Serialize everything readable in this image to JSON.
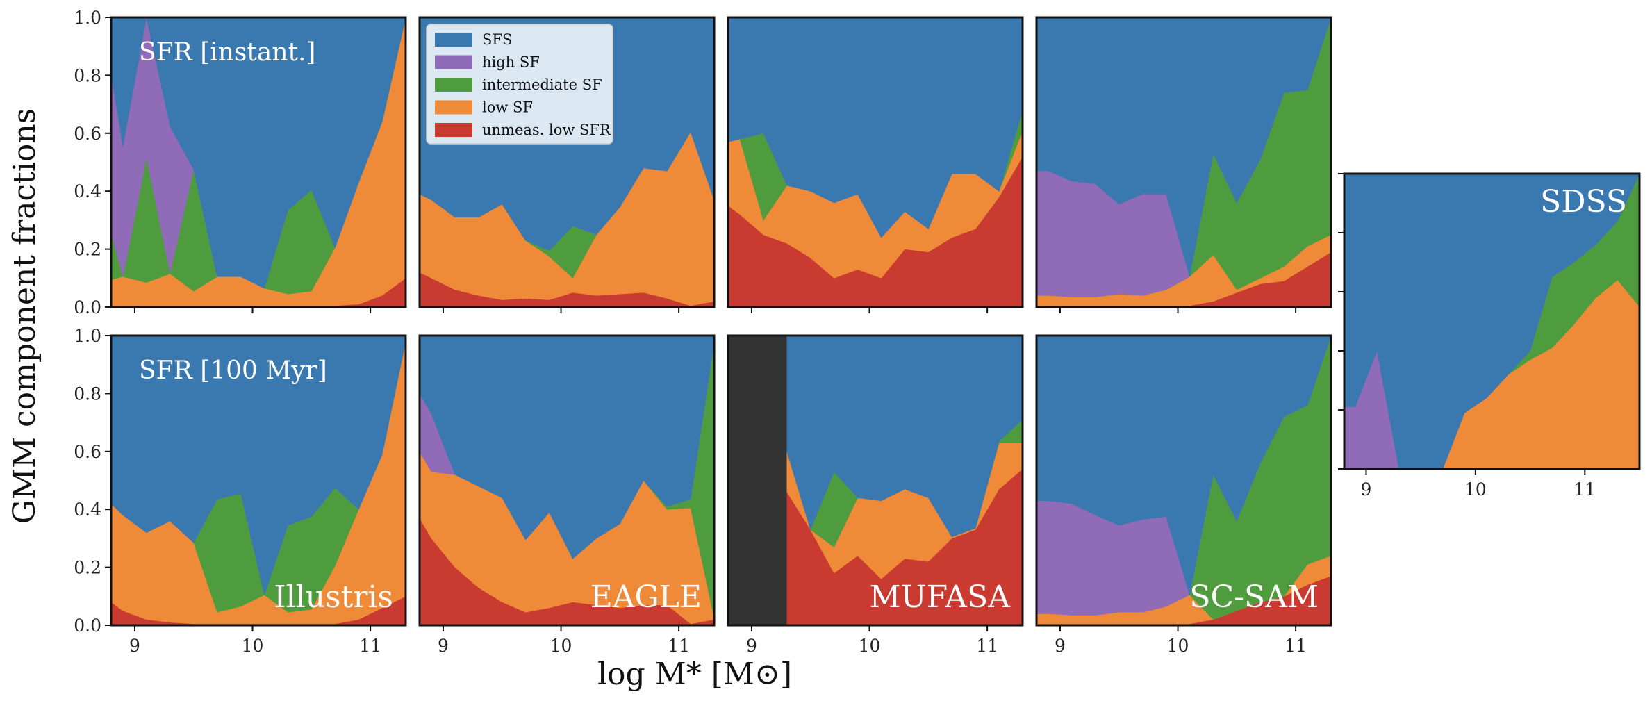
{
  "colors": {
    "SFS": "#3a78b0",
    "high SF": "#8f6bb8",
    "intermediate SF": "#4f9c3e",
    "low SF": "#ee8a38",
    "unmeas. low SFR": "#c93a30",
    "excluded": "#333333"
  },
  "ylabel": "GMM component fractions",
  "xlabel": "log M* [M⊙]",
  "legend": {
    "placement": "top-left of top EAGLE panel",
    "items": [
      "SFS",
      "high SF",
      "intermediate SF",
      "low SF",
      "unmeas. low SFR"
    ]
  },
  "row_labels": [
    "SFR [instant.]",
    "SFR [100 Myr]"
  ],
  "chart_data": [
    {
      "name": "illustris-instant",
      "type": "area",
      "row": 0,
      "col": 0,
      "title": "",
      "cut": null,
      "x": [
        8.8,
        8.9,
        9.1,
        9.3,
        9.5,
        9.7,
        9.9,
        10.1,
        10.3,
        10.5,
        10.7,
        10.9,
        11.1,
        11.3
      ],
      "series": [
        {
          "name": "unmeas. low SFR",
          "values": [
            0.005,
            0.005,
            0.005,
            0.005,
            0.005,
            0.005,
            0.005,
            0.005,
            0.005,
            0.005,
            0.005,
            0.01,
            0.04,
            0.1
          ]
        },
        {
          "name": "low SF",
          "values": [
            0.09,
            0.1,
            0.08,
            0.11,
            0.05,
            0.1,
            0.1,
            0.06,
            0.04,
            0.05,
            0.2,
            0.42,
            0.6,
            0.9
          ]
        },
        {
          "name": "intermediate SF",
          "values": [
            0.16,
            0.0,
            0.43,
            0.0,
            0.42,
            0.0,
            0.0,
            0.0,
            0.29,
            0.35,
            0.0,
            0.0,
            0.0,
            0.0
          ]
        },
        {
          "name": "high SF",
          "values": [
            0.55,
            0.45,
            0.485,
            0.51,
            0.0,
            0.0,
            0.0,
            0.0,
            0.0,
            0.0,
            0.0,
            0.0,
            0.0,
            0.0
          ]
        },
        {
          "name": "SFS",
          "values": [
            0.195,
            0.445,
            0.0,
            0.375,
            0.525,
            0.895,
            0.895,
            0.935,
            0.665,
            0.595,
            0.795,
            0.57,
            0.36,
            0.0
          ]
        }
      ]
    },
    {
      "name": "eagle-instant",
      "type": "area",
      "row": 0,
      "col": 1,
      "title": "",
      "cut": null,
      "x": [
        8.8,
        8.9,
        9.1,
        9.3,
        9.5,
        9.7,
        9.9,
        10.1,
        10.3,
        10.5,
        10.7,
        10.9,
        11.1,
        11.3
      ],
      "series": [
        {
          "name": "unmeas. low SFR",
          "values": [
            0.12,
            0.1,
            0.06,
            0.04,
            0.025,
            0.03,
            0.025,
            0.05,
            0.04,
            0.045,
            0.05,
            0.03,
            0.005,
            0.02
          ]
        },
        {
          "name": "low SF",
          "values": [
            0.27,
            0.27,
            0.25,
            0.27,
            0.33,
            0.2,
            0.15,
            0.05,
            0.21,
            0.3,
            0.43,
            0.44,
            0.6,
            0.35
          ]
        },
        {
          "name": "intermediate SF",
          "values": [
            0.0,
            0.0,
            0.0,
            0.0,
            0.0,
            0.0,
            0.02,
            0.18,
            0.0,
            0.0,
            0.0,
            0.0,
            0.0,
            0.0
          ]
        },
        {
          "name": "high SF",
          "values": [
            0.0,
            0.0,
            0.0,
            0.0,
            0.0,
            0.0,
            0.0,
            0.0,
            0.0,
            0.0,
            0.0,
            0.0,
            0.0,
            0.0
          ]
        },
        {
          "name": "SFS",
          "values": [
            0.61,
            0.63,
            0.69,
            0.69,
            0.645,
            0.77,
            0.805,
            0.72,
            0.75,
            0.655,
            0.52,
            0.53,
            0.395,
            0.63
          ]
        }
      ]
    },
    {
      "name": "mufasa-instant",
      "type": "area",
      "row": 0,
      "col": 2,
      "title": "",
      "cut": null,
      "x": [
        8.8,
        8.9,
        9.1,
        9.3,
        9.5,
        9.7,
        9.9,
        10.1,
        10.3,
        10.5,
        10.7,
        10.9,
        11.1,
        11.3
      ],
      "series": [
        {
          "name": "unmeas. low SFR",
          "values": [
            0.35,
            0.32,
            0.25,
            0.22,
            0.17,
            0.1,
            0.13,
            0.1,
            0.2,
            0.19,
            0.24,
            0.27,
            0.38,
            0.52
          ]
        },
        {
          "name": "low SF",
          "values": [
            0.22,
            0.26,
            0.05,
            0.2,
            0.23,
            0.26,
            0.26,
            0.14,
            0.13,
            0.08,
            0.22,
            0.19,
            0.02,
            0.09
          ]
        },
        {
          "name": "intermediate SF",
          "values": [
            0.0,
            0.0,
            0.3,
            0.0,
            0.0,
            0.0,
            0.0,
            0.0,
            0.0,
            0.0,
            0.0,
            0.0,
            0.0,
            0.07
          ]
        },
        {
          "name": "high SF",
          "values": [
            0.0,
            0.0,
            0.0,
            0.0,
            0.0,
            0.0,
            0.0,
            0.0,
            0.0,
            0.0,
            0.0,
            0.0,
            0.0,
            0.0
          ]
        },
        {
          "name": "SFS",
          "values": [
            0.43,
            0.42,
            0.4,
            0.58,
            0.6,
            0.64,
            0.61,
            0.76,
            0.67,
            0.73,
            0.54,
            0.54,
            0.6,
            0.32
          ]
        }
      ]
    },
    {
      "name": "scsam-instant",
      "type": "area",
      "row": 0,
      "col": 3,
      "title": "",
      "cut": 8.9,
      "x": [
        8.8,
        8.9,
        9.1,
        9.3,
        9.5,
        9.7,
        9.9,
        10.1,
        10.3,
        10.5,
        10.7,
        10.9,
        11.1,
        11.3
      ],
      "series": [
        {
          "name": "unmeas. low SFR",
          "values": [
            0.0,
            0.0,
            0.0,
            0.0,
            0.0,
            0.0,
            0.0,
            0.005,
            0.02,
            0.05,
            0.08,
            0.09,
            0.14,
            0.19
          ]
        },
        {
          "name": "low SF",
          "values": [
            0.04,
            0.04,
            0.035,
            0.035,
            0.045,
            0.04,
            0.06,
            0.1,
            0.16,
            0.01,
            0.02,
            0.05,
            0.07,
            0.06
          ]
        },
        {
          "name": "intermediate SF",
          "values": [
            0.0,
            0.0,
            0.0,
            0.0,
            0.0,
            0.0,
            0.0,
            0.0,
            0.35,
            0.3,
            0.41,
            0.6,
            0.54,
            0.75
          ]
        },
        {
          "name": "high SF",
          "values": [
            0.43,
            0.43,
            0.4,
            0.39,
            0.31,
            0.35,
            0.33,
            0.0,
            0.0,
            0.0,
            0.0,
            0.0,
            0.0,
            0.0
          ]
        },
        {
          "name": "SFS",
          "values": [
            0.53,
            0.53,
            0.565,
            0.575,
            0.645,
            0.61,
            0.61,
            0.895,
            0.47,
            0.64,
            0.49,
            0.26,
            0.25,
            0.0
          ]
        }
      ]
    },
    {
      "name": "illustris-100myr",
      "type": "area",
      "row": 1,
      "col": 0,
      "title": "Illustris",
      "cut": null,
      "x": [
        8.8,
        8.9,
        9.1,
        9.3,
        9.5,
        9.7,
        9.9,
        10.1,
        10.3,
        10.5,
        10.7,
        10.9,
        11.1,
        11.3
      ],
      "series": [
        {
          "name": "unmeas. low SFR",
          "values": [
            0.08,
            0.05,
            0.02,
            0.01,
            0.005,
            0.005,
            0.005,
            0.005,
            0.005,
            0.005,
            0.005,
            0.02,
            0.06,
            0.1
          ]
        },
        {
          "name": "low SF",
          "values": [
            0.34,
            0.33,
            0.3,
            0.35,
            0.28,
            0.04,
            0.06,
            0.1,
            0.04,
            0.05,
            0.2,
            0.38,
            0.53,
            0.88
          ]
        },
        {
          "name": "intermediate SF",
          "values": [
            0.0,
            0.0,
            0.0,
            0.0,
            0.0,
            0.39,
            0.39,
            0.0,
            0.3,
            0.32,
            0.27,
            0.0,
            0.0,
            0.0
          ]
        },
        {
          "name": "high SF",
          "values": [
            0.0,
            0.0,
            0.0,
            0.0,
            0.0,
            0.0,
            0.0,
            0.0,
            0.0,
            0.0,
            0.0,
            0.0,
            0.0,
            0.0
          ]
        },
        {
          "name": "SFS",
          "values": [
            0.58,
            0.62,
            0.68,
            0.64,
            0.715,
            0.565,
            0.545,
            0.895,
            0.655,
            0.625,
            0.525,
            0.6,
            0.41,
            0.02
          ]
        }
      ]
    },
    {
      "name": "eagle-100myr",
      "type": "area",
      "row": 1,
      "col": 1,
      "title": "EAGLE",
      "cut": null,
      "x": [
        8.8,
        8.9,
        9.1,
        9.3,
        9.5,
        9.7,
        9.9,
        10.1,
        10.3,
        10.5,
        10.7,
        10.9,
        11.1,
        11.3
      ],
      "series": [
        {
          "name": "unmeas. low SFR",
          "values": [
            0.37,
            0.3,
            0.2,
            0.13,
            0.08,
            0.045,
            0.06,
            0.08,
            0.07,
            0.06,
            0.07,
            0.07,
            0.005,
            0.02
          ]
        },
        {
          "name": "low SF",
          "values": [
            0.23,
            0.23,
            0.32,
            0.35,
            0.36,
            0.25,
            0.33,
            0.15,
            0.23,
            0.29,
            0.43,
            0.33,
            0.4,
            0.005
          ]
        },
        {
          "name": "intermediate SF",
          "values": [
            0.0,
            0.0,
            0.0,
            0.0,
            0.0,
            0.0,
            0.0,
            0.0,
            0.0,
            0.0,
            0.0,
            0.01,
            0.03,
            0.95
          ]
        },
        {
          "name": "high SF",
          "values": [
            0.2,
            0.2,
            0.0,
            0.0,
            0.0,
            0.0,
            0.0,
            0.0,
            0.0,
            0.0,
            0.0,
            0.0,
            0.0,
            0.0
          ]
        },
        {
          "name": "SFS",
          "values": [
            0.2,
            0.27,
            0.48,
            0.52,
            0.56,
            0.705,
            0.61,
            0.77,
            0.7,
            0.65,
            0.5,
            0.59,
            0.565,
            0.025
          ]
        }
      ]
    },
    {
      "name": "mufasa-100myr",
      "type": "area",
      "row": 1,
      "col": 2,
      "title": "MUFASA",
      "cut": 9.3,
      "x": [
        9.3,
        9.5,
        9.7,
        9.9,
        10.1,
        10.3,
        10.5,
        10.7,
        10.9,
        11.1,
        11.3
      ],
      "series": [
        {
          "name": "unmeas. low SFR",
          "values": [
            0.46,
            0.33,
            0.18,
            0.24,
            0.16,
            0.23,
            0.22,
            0.3,
            0.33,
            0.47,
            0.54
          ]
        },
        {
          "name": "low SF",
          "values": [
            0.14,
            0.0,
            0.09,
            0.2,
            0.27,
            0.24,
            0.22,
            0.005,
            0.005,
            0.16,
            0.09
          ]
        },
        {
          "name": "intermediate SF",
          "values": [
            0.0,
            0.0,
            0.26,
            0.0,
            0.0,
            0.0,
            0.0,
            0.0,
            0.0,
            0.005,
            0.08
          ]
        },
        {
          "name": "high SF",
          "values": [
            0.0,
            0.0,
            0.0,
            0.0,
            0.0,
            0.0,
            0.0,
            0.0,
            0.0,
            0.0,
            0.0
          ]
        },
        {
          "name": "SFS",
          "values": [
            0.4,
            0.67,
            0.47,
            0.56,
            0.57,
            0.53,
            0.56,
            0.695,
            0.665,
            0.365,
            0.29
          ]
        }
      ]
    },
    {
      "name": "scsam-100myr",
      "type": "area",
      "row": 1,
      "col": 3,
      "title": "SC-SAM",
      "cut": 8.9,
      "x": [
        8.8,
        8.9,
        9.1,
        9.3,
        9.5,
        9.7,
        9.9,
        10.1,
        10.3,
        10.5,
        10.7,
        10.9,
        11.1,
        11.3
      ],
      "series": [
        {
          "name": "unmeas. low SFR",
          "values": [
            0.0,
            0.0,
            0.0,
            0.0,
            0.0,
            0.0,
            0.0,
            0.005,
            0.02,
            0.05,
            0.08,
            0.1,
            0.14,
            0.17
          ]
        },
        {
          "name": "low SF",
          "values": [
            0.04,
            0.04,
            0.035,
            0.035,
            0.045,
            0.045,
            0.065,
            0.1,
            0.0,
            0.0,
            0.0,
            0.0,
            0.07,
            0.07
          ]
        },
        {
          "name": "intermediate SF",
          "values": [
            0.0,
            0.0,
            0.0,
            0.0,
            0.0,
            0.0,
            0.0,
            0.0,
            0.5,
            0.31,
            0.48,
            0.62,
            0.55,
            0.76
          ]
        },
        {
          "name": "high SF",
          "values": [
            0.39,
            0.39,
            0.385,
            0.345,
            0.3,
            0.32,
            0.31,
            0.0,
            0.0,
            0.0,
            0.0,
            0.0,
            0.0,
            0.0
          ]
        },
        {
          "name": "SFS",
          "values": [
            0.57,
            0.57,
            0.58,
            0.62,
            0.655,
            0.635,
            0.625,
            0.895,
            0.48,
            0.64,
            0.44,
            0.28,
            0.24,
            0.0
          ]
        }
      ]
    },
    {
      "name": "sdss",
      "type": "area",
      "row": "side",
      "col": 4,
      "title": "SDSS",
      "cut": null,
      "x": [
        8.8,
        8.9,
        9.1,
        9.3,
        9.5,
        9.7,
        9.9,
        10.1,
        10.3,
        10.5,
        10.7,
        10.9,
        11.1,
        11.3,
        11.5
      ],
      "series": [
        {
          "name": "unmeas. low SFR",
          "values": [
            0.0,
            0.0,
            0.0,
            0.0,
            0.0,
            0.0,
            0.0,
            0.0,
            0.0,
            0.0,
            0.0,
            0.0,
            0.0,
            0.0,
            0.0
          ]
        },
        {
          "name": "low SF",
          "values": [
            0.0,
            0.0,
            0.0,
            0.0,
            0.0,
            0.0,
            0.19,
            0.24,
            0.32,
            0.37,
            0.41,
            0.49,
            0.58,
            0.64,
            0.55
          ]
        },
        {
          "name": "intermediate SF",
          "values": [
            0.0,
            0.0,
            0.0,
            0.0,
            0.0,
            0.0,
            0.0,
            0.0,
            0.0,
            0.03,
            0.24,
            0.21,
            0.18,
            0.2,
            0.45
          ]
        },
        {
          "name": "high SF",
          "values": [
            0.21,
            0.21,
            0.4,
            0.0,
            0.0,
            0.0,
            0.0,
            0.0,
            0.0,
            0.0,
            0.0,
            0.0,
            0.0,
            0.0,
            0.0
          ]
        },
        {
          "name": "SFS",
          "values": [
            0.79,
            0.79,
            0.6,
            1.0,
            1.0,
            1.0,
            0.81,
            0.76,
            0.68,
            0.6,
            0.35,
            0.3,
            0.24,
            0.16,
            0.0
          ]
        }
      ]
    }
  ],
  "axes": {
    "main_xlim": [
      8.8,
      11.3
    ],
    "sdss_xlim": [
      8.8,
      11.5
    ],
    "ylim": [
      0,
      1
    ],
    "xticks": [
      9,
      10,
      11
    ],
    "xtick_labels": [
      "9",
      "10",
      "11"
    ],
    "yticks": [
      0,
      0.2,
      0.4,
      0.6,
      0.8,
      1.0
    ],
    "ytick_labels": [
      "0.0",
      "0.2",
      "0.4",
      "0.6",
      "0.8",
      "1.0"
    ]
  }
}
